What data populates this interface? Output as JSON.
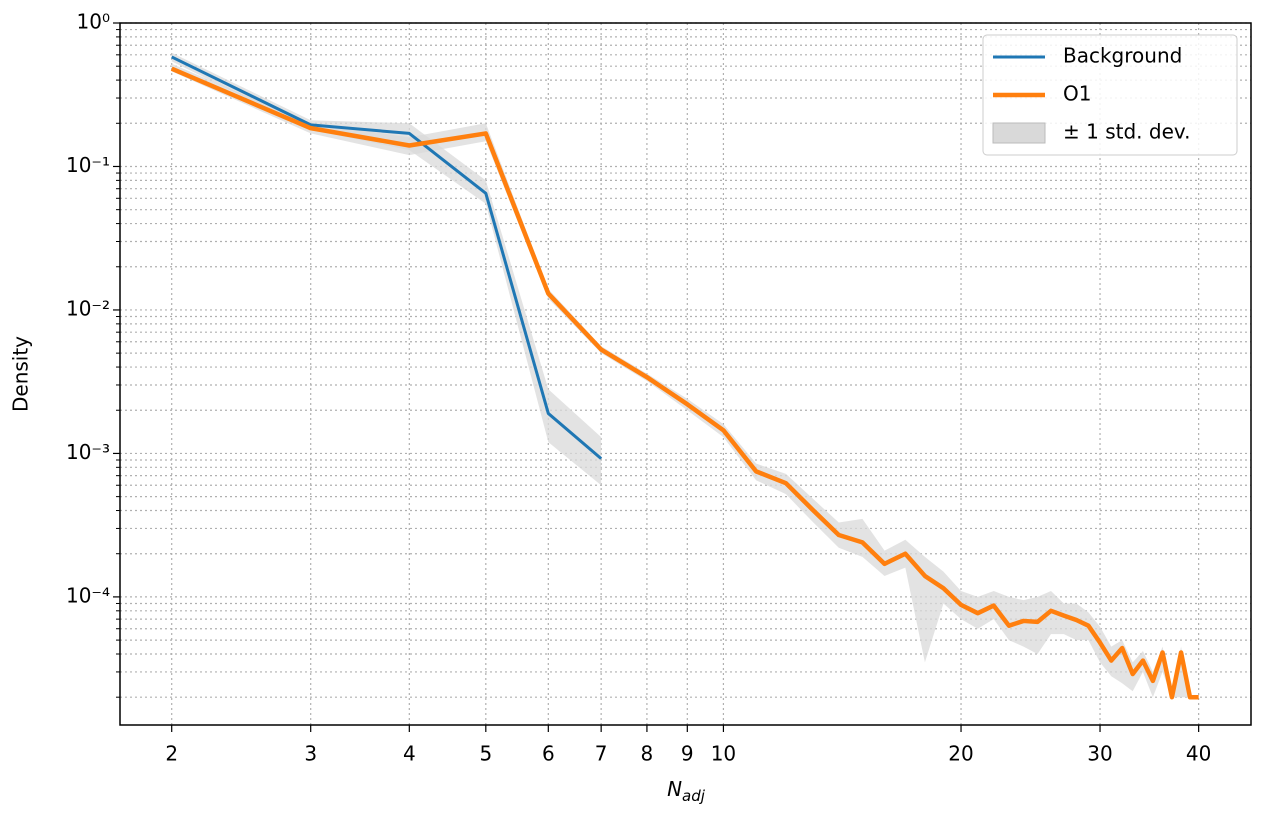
{
  "chart_data": {
    "type": "line",
    "xlabel": "N",
    "xlabel_sub": "adj",
    "ylabel": "Density",
    "xlog": true,
    "ylog": true,
    "grid": true,
    "xlim": [
      1.72,
      46.6
    ],
    "ylim": [
      1.28e-05,
      1
    ],
    "xticks": [
      2,
      3,
      4,
      5,
      6,
      7,
      8,
      9,
      10,
      20,
      30,
      40
    ],
    "yticks": [
      {
        "value": 1,
        "label": "10⁰"
      },
      {
        "value": 0.1,
        "label": "10⁻¹"
      },
      {
        "value": 0.01,
        "label": "10⁻²"
      },
      {
        "value": 0.001,
        "label": "10⁻³"
      },
      {
        "value": 0.0001,
        "label": "10⁻⁴"
      }
    ],
    "yminorticks": [
      2e-05,
      3e-05,
      4e-05,
      5e-05,
      6e-05,
      7e-05,
      8e-05,
      9e-05,
      0.0002,
      0.0003,
      0.0004,
      0.0005,
      0.0006,
      0.0007,
      0.0008,
      0.0009,
      0.002,
      0.003,
      0.004,
      0.005,
      0.006,
      0.007,
      0.008,
      0.009,
      0.02,
      0.03,
      0.04,
      0.05,
      0.06,
      0.07,
      0.08,
      0.09,
      0.2,
      0.3,
      0.4,
      0.5,
      0.6,
      0.7,
      0.8,
      0.9
    ],
    "legend": "upper right",
    "band": {
      "name": "± 1 std. dev.",
      "color": "#d9d9d9"
    },
    "series": [
      {
        "name": "Background",
        "color": "#1f77b4",
        "width": 3,
        "x": [
          2,
          3,
          4,
          5,
          6,
          7
        ],
        "values": [
          0.58,
          0.195,
          0.17,
          0.065,
          0.0019,
          0.00092
        ],
        "lower": [
          0.54,
          0.18,
          0.13,
          0.055,
          0.0012,
          0.0006
        ],
        "upper": [
          0.62,
          0.21,
          0.2,
          0.08,
          0.0028,
          0.0013
        ]
      },
      {
        "name": "O1",
        "color": "#ff7f0e",
        "width": 4.5,
        "x": [
          2,
          3,
          4,
          5,
          6,
          7,
          8,
          9,
          10,
          11,
          12,
          13,
          14,
          15,
          16,
          17,
          18,
          19,
          20,
          21,
          22,
          23,
          24,
          25,
          26,
          27,
          28,
          29,
          30,
          31,
          32,
          33,
          34,
          35,
          36,
          37,
          38,
          39,
          40
        ],
        "values": [
          0.48,
          0.185,
          0.14,
          0.17,
          0.013,
          0.0053,
          0.0034,
          0.0022,
          0.00145,
          0.00075,
          0.00062,
          0.0004,
          0.00027,
          0.00024,
          0.00017,
          0.0002,
          0.00014,
          0.000115,
          8.8e-05,
          7.7e-05,
          8.7e-05,
          6.3e-05,
          6.8e-05,
          6.7e-05,
          8e-05,
          7.4e-05,
          6.9e-05,
          6.3e-05,
          4.8e-05,
          3.6e-05,
          4.4e-05,
          2.9e-05,
          3.6e-05,
          2.6e-05,
          4.1e-05,
          2e-05,
          4.1e-05,
          2e-05,
          2e-05
        ],
        "lower": [
          0.46,
          0.17,
          0.12,
          0.15,
          0.012,
          0.005,
          0.0032,
          0.002,
          0.0013,
          0.00065,
          0.00052,
          0.00033,
          0.00022,
          0.00019,
          0.00014,
          0.00016,
          3.5e-05,
          9e-05,
          7e-05,
          6e-05,
          7e-05,
          5e-05,
          4.5e-05,
          4e-05,
          5.5e-05,
          5.5e-05,
          5e-05,
          5e-05,
          3.5e-05,
          2.8e-05,
          2.5e-05,
          2.2e-05,
          3e-05,
          2e-05,
          3e-05,
          2e-05,
          2e-05,
          2e-05,
          2e-05
        ],
        "upper": [
          0.52,
          0.2,
          0.16,
          0.2,
          0.014,
          0.0056,
          0.0036,
          0.0024,
          0.0016,
          0.00085,
          0.00072,
          0.00048,
          0.00033,
          0.00035,
          0.00021,
          0.00025,
          0.00019,
          0.00015,
          0.00011,
          0.0001,
          0.00011,
          0.0001,
          9.5e-05,
          0.0001,
          0.00011,
          9e-05,
          9e-05,
          7.8e-05,
          6.2e-05,
          4.5e-05,
          5e-05,
          3.5e-05,
          4.2e-05,
          3e-05,
          4.5e-05,
          2.2e-05,
          4.5e-05,
          2e-05,
          2e-05
        ]
      }
    ]
  }
}
